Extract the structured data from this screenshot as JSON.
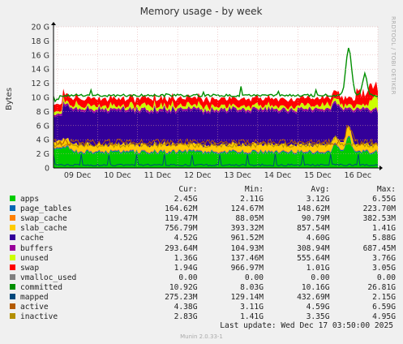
{
  "chart_data": {
    "type": "area",
    "title": "Memory usage - by week",
    "ylabel": "Bytes",
    "ylim": [
      0,
      20
    ],
    "yticks": [
      "0",
      "2 G",
      "4 G",
      "6 G",
      "8 G",
      "10 G",
      "12 G",
      "14 G",
      "16 G",
      "18 G",
      "20 G"
    ],
    "xticks": [
      "09 Dec",
      "10 Dec",
      "11 Dec",
      "12 Dec",
      "13 Dec",
      "14 Dec",
      "15 Dec",
      "16 Dec"
    ],
    "grid": true,
    "side_text": "RRDTOOL / TOBI OETIKER",
    "legend_headers": [
      "Cur:",
      "Min:",
      "Avg:",
      "Max:"
    ],
    "series": [
      {
        "name": "apps",
        "color": "#00cc00",
        "values": {
          "cur": "2.45G",
          "min": "2.11G",
          "avg": "3.12G",
          "max": "6.55G"
        }
      },
      {
        "name": "page_tables",
        "color": "#0066b3",
        "values": {
          "cur": "164.62M",
          "min": "124.67M",
          "avg": "148.62M",
          "max": "223.70M"
        }
      },
      {
        "name": "swap_cache",
        "color": "#ff8000",
        "values": {
          "cur": "119.47M",
          "min": "88.05M",
          "avg": "90.79M",
          "max": "382.53M"
        }
      },
      {
        "name": "slab_cache",
        "color": "#ffcc00",
        "values": {
          "cur": "756.79M",
          "min": "393.32M",
          "avg": "857.54M",
          "max": "1.41G"
        }
      },
      {
        "name": "cache",
        "color": "#330099",
        "values": {
          "cur": "4.52G",
          "min": "961.52M",
          "avg": "4.60G",
          "max": "5.88G"
        }
      },
      {
        "name": "buffers",
        "color": "#990099",
        "values": {
          "cur": "293.64M",
          "min": "104.93M",
          "avg": "308.94M",
          "max": "687.45M"
        }
      },
      {
        "name": "unused",
        "color": "#ccff00",
        "values": {
          "cur": "1.36G",
          "min": "137.46M",
          "avg": "555.64M",
          "max": "3.76G"
        }
      },
      {
        "name": "swap",
        "color": "#ff0000",
        "values": {
          "cur": "1.94G",
          "min": "966.97M",
          "avg": "1.01G",
          "max": "3.05G"
        }
      },
      {
        "name": "vmalloc_used",
        "color": "#808080",
        "values": {
          "cur": "0.00",
          "min": "0.00",
          "avg": "0.00",
          "max": "0.00"
        }
      },
      {
        "name": "committed",
        "color": "#008f00",
        "values": {
          "cur": "10.92G",
          "min": "8.03G",
          "avg": "10.16G",
          "max": "26.81G"
        }
      },
      {
        "name": "mapped",
        "color": "#00487d",
        "values": {
          "cur": "275.23M",
          "min": "129.14M",
          "avg": "432.69M",
          "max": "2.15G"
        }
      },
      {
        "name": "active",
        "color": "#b35a00",
        "values": {
          "cur": "4.38G",
          "min": "3.11G",
          "avg": "4.59G",
          "max": "6.59G"
        }
      },
      {
        "name": "inactive",
        "color": "#b38f00",
        "values": {
          "cur": "2.83G",
          "min": "1.41G",
          "avg": "3.35G",
          "max": "4.95G"
        }
      }
    ]
  },
  "footer": {
    "last_update": "Last update:  Wed Dec 17 03:50:00 2025",
    "version": "Munin 2.0.33-1"
  }
}
